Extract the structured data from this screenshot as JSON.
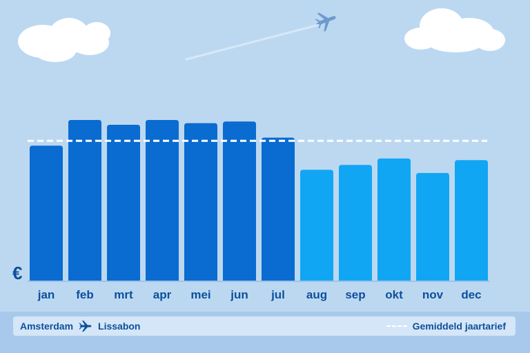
{
  "chart_data": {
    "type": "bar",
    "title": "",
    "xlabel": "",
    "ylabel": "€",
    "categories": [
      "jan",
      "feb",
      "mrt",
      "apr",
      "mei",
      "jun",
      "jul",
      "aug",
      "sep",
      "okt",
      "nov",
      "dec"
    ],
    "values": [
      84,
      100,
      97,
      100,
      98,
      99,
      89,
      69,
      72,
      76,
      67,
      75
    ],
    "ylim": [
      0,
      106
    ],
    "average": 87,
    "bar_colors": {
      "high": "#0a6bd1",
      "low": "#11a6f3"
    },
    "high_season_months": [
      "jan",
      "feb",
      "mrt",
      "apr",
      "mei",
      "jun",
      "jul"
    ],
    "grid": false
  },
  "route": {
    "from": "Amsterdam",
    "to": "Lissabon"
  },
  "legend": {
    "average_label": "Gemiddeld jaartarief"
  },
  "icons": {
    "route": "airplane-icon",
    "sky": "airplane-icon"
  },
  "colors": {
    "sky": "#bcd8f1",
    "text": "#0d4f9c"
  }
}
